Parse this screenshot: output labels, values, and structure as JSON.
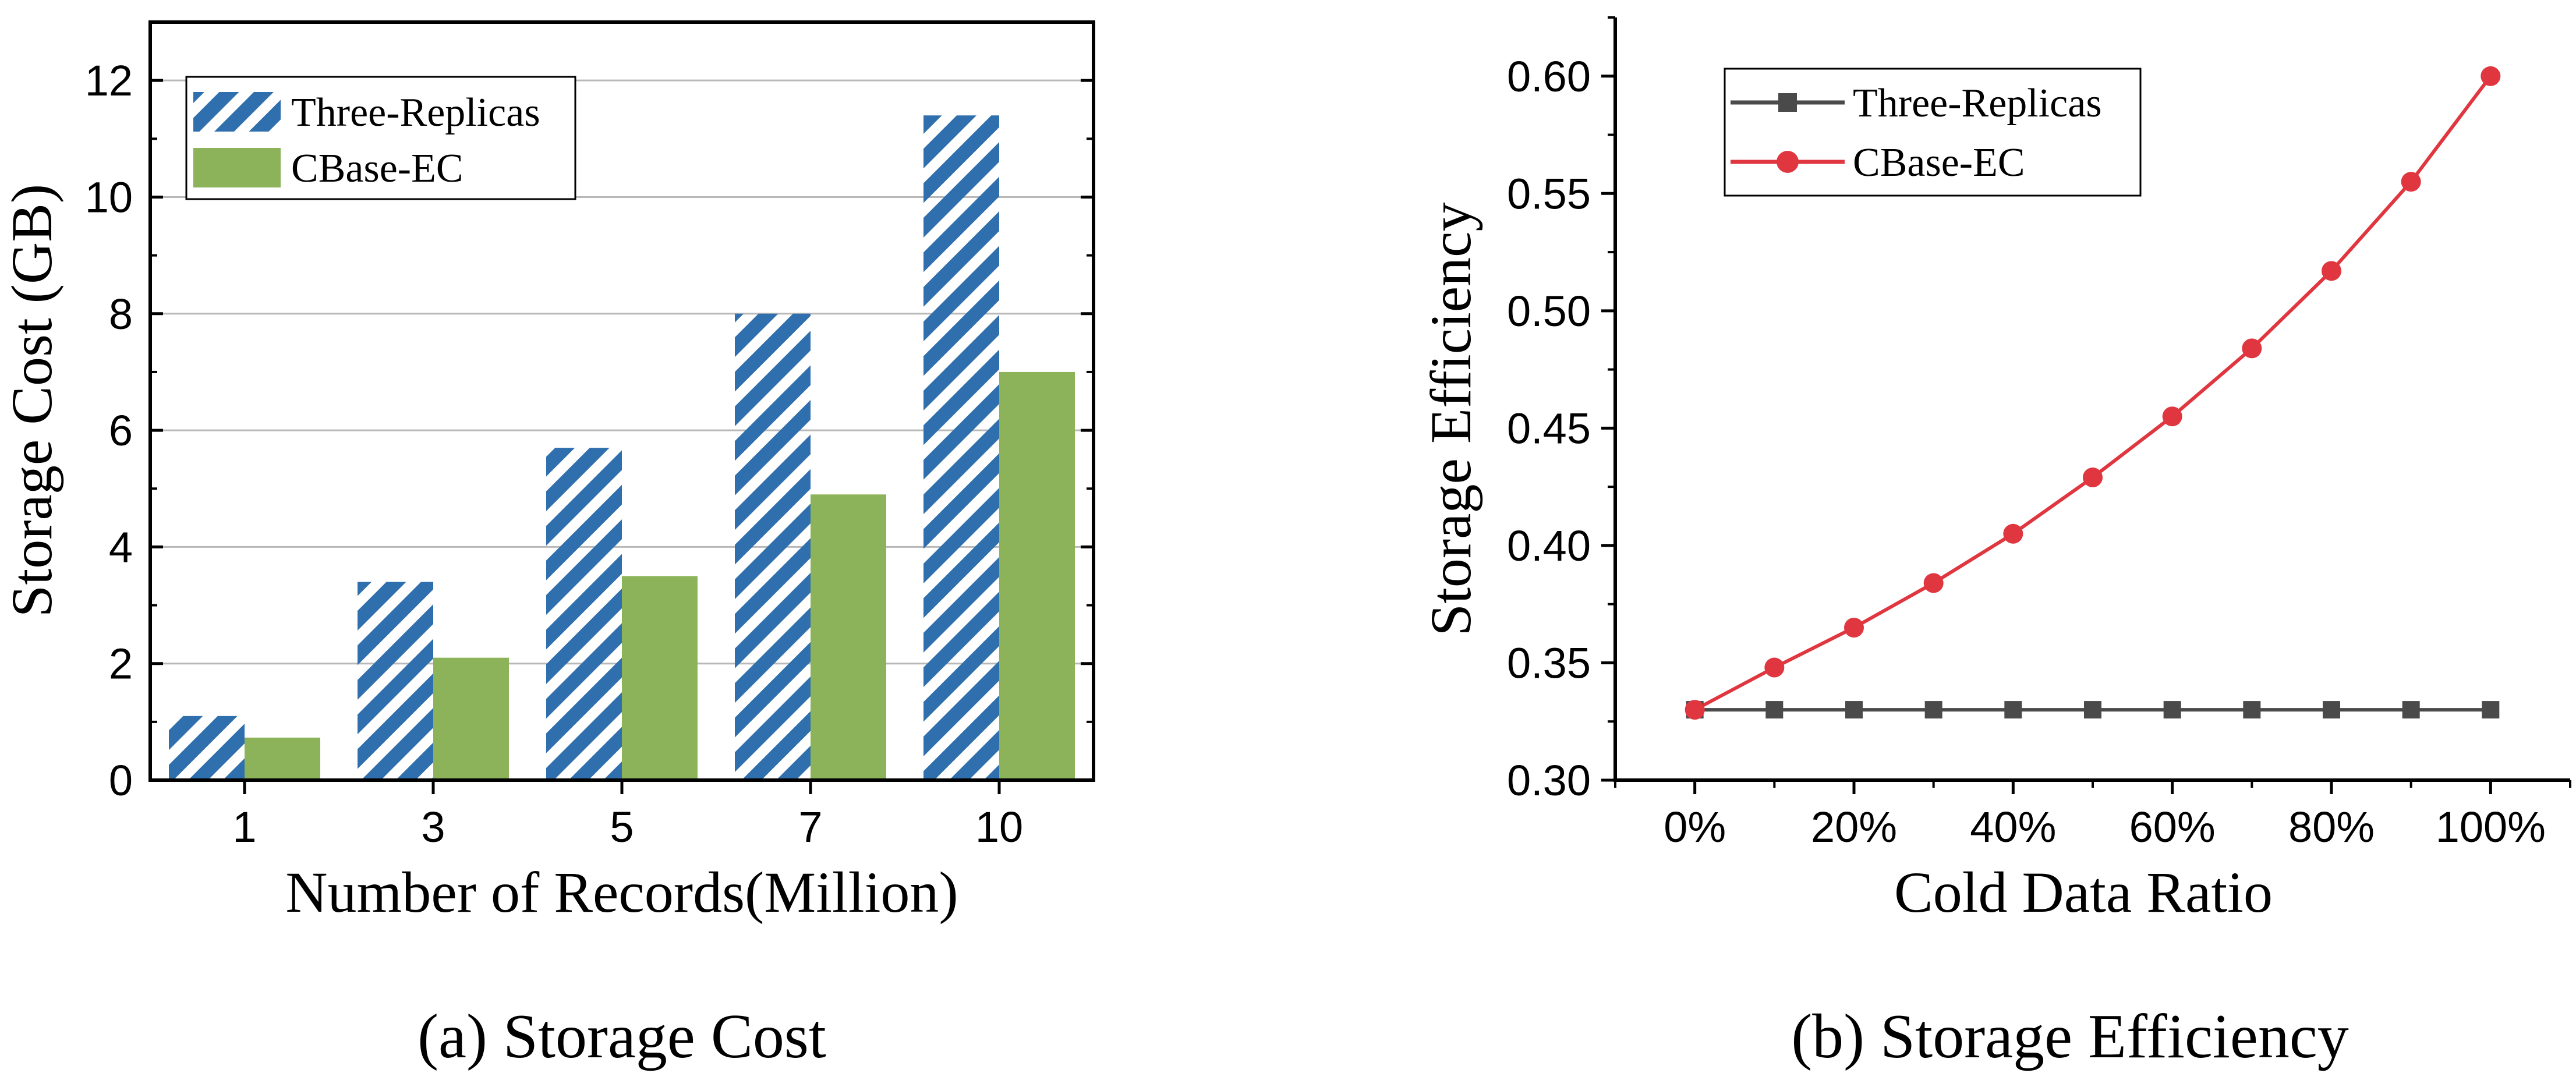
{
  "chart_data": [
    {
      "type": "bar",
      "title": "",
      "caption": "(a) Storage Cost",
      "xlabel": "Number of Records(Million)",
      "ylabel": "Storage Cost (GB)",
      "categories": [
        "1",
        "3",
        "5",
        "7",
        "10"
      ],
      "ylim": [
        0,
        13
      ],
      "yticks": [
        "0",
        "2",
        "4",
        "6",
        "8",
        "10",
        "12"
      ],
      "grid": true,
      "legend_position": "top-left",
      "series": [
        {
          "name": "Three-Replicas",
          "values": [
            1.1,
            3.4,
            5.7,
            8.0,
            11.4
          ],
          "color": "#2f6fad",
          "pattern": "diagonal-hatch"
        },
        {
          "name": "CBase-EC",
          "values": [
            0.73,
            2.1,
            3.5,
            4.9,
            7.0
          ],
          "color": "#8db35a",
          "pattern": "solid"
        }
      ]
    },
    {
      "type": "line",
      "title": "",
      "caption": "(b) Storage Efficiency",
      "xlabel": "Cold Data Ratio",
      "ylabel": "Storage Efficiency",
      "x": [
        0,
        10,
        20,
        30,
        40,
        50,
        60,
        70,
        80,
        90,
        100
      ],
      "xticks": [
        "0%",
        "20%",
        "40%",
        "60%",
        "80%",
        "100%"
      ],
      "xlim": [
        -10,
        110
      ],
      "ylim": [
        0.3,
        0.625
      ],
      "yticks": [
        "0.30",
        "0.35",
        "0.40",
        "0.45",
        "0.50",
        "0.55",
        "0.60"
      ],
      "grid": false,
      "legend_position": "top-left",
      "series": [
        {
          "name": "Three-Replicas",
          "values": [
            0.33,
            0.33,
            0.33,
            0.33,
            0.33,
            0.33,
            0.33,
            0.33,
            0.33,
            0.33,
            0.33
          ],
          "color": "#4a4a4a",
          "marker": "square"
        },
        {
          "name": "CBase-EC",
          "values": [
            0.33,
            0.348,
            0.365,
            0.384,
            0.405,
            0.429,
            0.455,
            0.484,
            0.517,
            0.555,
            0.6
          ],
          "color": "#e0363f",
          "marker": "circle"
        }
      ]
    }
  ]
}
